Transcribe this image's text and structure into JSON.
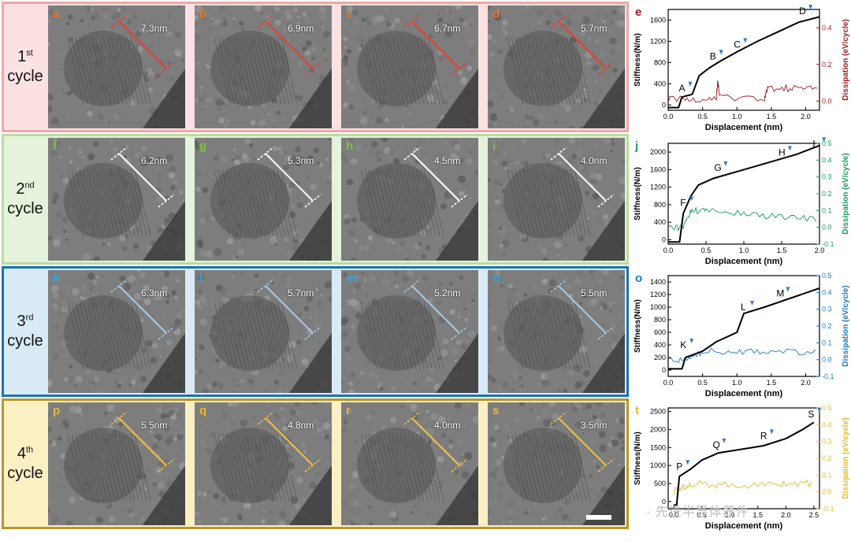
{
  "rows": [
    {
      "cycle_num": "1",
      "cycle_sup": "st",
      "cycle_word": "cycle",
      "border": "#f2a6a8",
      "bg": "#fbe1e2",
      "accent": "#e53e2e",
      "label_color": "#e0742c",
      "panels": [
        {
          "letter": "a",
          "value": "7.3nm"
        },
        {
          "letter": "b",
          "value": "6.9nm"
        },
        {
          "letter": "c",
          "value": "6.7nm"
        },
        {
          "letter": "d",
          "value": "5.7nm"
        }
      ]
    },
    {
      "cycle_num": "2",
      "cycle_sup": "nd",
      "cycle_word": "cycle",
      "border": "#b8dca0",
      "bg": "#e6f3dc",
      "accent": "#ffffff",
      "label_color": "#7dc23f",
      "panels": [
        {
          "letter": "f",
          "value": "6.2nm"
        },
        {
          "letter": "g",
          "value": "5.3nm"
        },
        {
          "letter": "h",
          "value": "4.5nm"
        },
        {
          "letter": "i",
          "value": "4.0nm"
        }
      ]
    },
    {
      "cycle_num": "3",
      "cycle_sup": "rd",
      "cycle_word": "cycle",
      "border": "#1a73b8",
      "bg": "#d9eaf7",
      "accent": "#a6c8e6",
      "label_color": "#29a7d9",
      "panels": [
        {
          "letter": "k",
          "value": "6.3nm"
        },
        {
          "letter": "l",
          "value": "5.7nm"
        },
        {
          "letter": "m",
          "value": "5.2nm"
        },
        {
          "letter": "n",
          "value": "5.5nm"
        }
      ]
    },
    {
      "cycle_num": "4",
      "cycle_sup": "th",
      "cycle_word": "cycle",
      "border": "#b8962a",
      "bg": "#fbefc4",
      "accent": "#f2c040",
      "label_color": "#e8b830",
      "panels": [
        {
          "letter": "p",
          "value": "5.5nm"
        },
        {
          "letter": "q",
          "value": "4.8nm"
        },
        {
          "letter": "r",
          "value": "4.0nm"
        },
        {
          "letter": "s",
          "value": "3.5nm"
        }
      ]
    }
  ],
  "watermark": "· 先进半导体器件",
  "chart_data": [
    {
      "panel_letter": "e",
      "type": "line",
      "xlabel": "Displacement (nm)",
      "ylabel": "Stiffness(N/m)",
      "y2label": "Dissipation (eV/cycle)",
      "xlim": [
        0,
        2.2
      ],
      "ylim": [
        -100,
        1800
      ],
      "y2lim": [
        -0.05,
        0.5
      ],
      "xticks": [
        0,
        0.5,
        1.0,
        1.5,
        2.0
      ],
      "yticks": [
        0,
        400,
        800,
        1200,
        1600
      ],
      "y2ticks": [
        0.0,
        0.2,
        0.4
      ],
      "color2": "#9a1c1c",
      "annotations": [
        {
          "label": "A",
          "x": 0.2,
          "y": 200
        },
        {
          "label": "B",
          "x": 0.65,
          "y": 800
        },
        {
          "label": "C",
          "x": 1.0,
          "y": 1020
        },
        {
          "label": "D",
          "x": 1.95,
          "y": 1650
        }
      ],
      "stiffness": [
        [
          0,
          -50
        ],
        [
          0.15,
          -50
        ],
        [
          0.2,
          150
        ],
        [
          0.35,
          200
        ],
        [
          0.45,
          550
        ],
        [
          0.6,
          700
        ],
        [
          0.75,
          820
        ],
        [
          1.0,
          1000
        ],
        [
          1.3,
          1200
        ],
        [
          1.6,
          1380
        ],
        [
          1.9,
          1560
        ],
        [
          2.2,
          1660
        ]
      ],
      "dissipation": [
        [
          0,
          0.01
        ],
        [
          0.3,
          0.01
        ],
        [
          0.7,
          0.02
        ],
        [
          0.72,
          0.11
        ],
        [
          0.75,
          0.02
        ],
        [
          1.4,
          0.02
        ],
        [
          1.45,
          0.07
        ],
        [
          1.8,
          0.07
        ],
        [
          2.2,
          0.07
        ]
      ]
    },
    {
      "panel_letter": "j",
      "type": "line",
      "xlabel": "Displacement (nm)",
      "ylabel": "Stiffness(N/m)",
      "y2label": "Dissipation (eV/cycle)",
      "xlim": [
        0,
        2.0
      ],
      "ylim": [
        -100,
        2200
      ],
      "y2lim": [
        -0.1,
        0.5
      ],
      "xticks": [
        0.0,
        0.5,
        1.0,
        1.5,
        2.0
      ],
      "yticks": [
        0,
        400,
        800,
        1200,
        1600,
        2000
      ],
      "y2ticks": [
        -0.1,
        0.0,
        0.1,
        0.2,
        0.3,
        0.4,
        0.5
      ],
      "color2": "#1a9a5a",
      "annotations": [
        {
          "label": "F",
          "x": 0.2,
          "y": 700
        },
        {
          "label": "G",
          "x": 0.65,
          "y": 1500
        },
        {
          "label": "H",
          "x": 1.5,
          "y": 1850
        },
        {
          "label": "I",
          "x": 1.95,
          "y": 2050
        }
      ],
      "stiffness": [
        [
          0,
          -50
        ],
        [
          0.15,
          -50
        ],
        [
          0.2,
          600
        ],
        [
          0.3,
          1000
        ],
        [
          0.4,
          1250
        ],
        [
          0.6,
          1400
        ],
        [
          1.0,
          1600
        ],
        [
          1.4,
          1800
        ],
        [
          1.7,
          1950
        ],
        [
          2.0,
          2150
        ]
      ],
      "dissipation": [
        [
          0,
          0.0
        ],
        [
          0.2,
          0.0
        ],
        [
          0.3,
          0.1
        ],
        [
          0.5,
          0.1
        ],
        [
          1.0,
          0.08
        ],
        [
          1.5,
          0.06
        ],
        [
          2.0,
          0.05
        ]
      ]
    },
    {
      "panel_letter": "o",
      "type": "line",
      "xlabel": "Displacement (nm)",
      "ylabel": "Stiffness(N/m)",
      "y2label": "Dissipation (eV/cycle)",
      "xlim": [
        0,
        2.2
      ],
      "ylim": [
        -100,
        1500
      ],
      "y2lim": [
        -0.1,
        0.5
      ],
      "xticks": [
        0.0,
        0.5,
        1.0,
        1.5,
        2.0
      ],
      "yticks": [
        0,
        200,
        400,
        600,
        800,
        1000,
        1200,
        1400
      ],
      "y2ticks": [
        -0.1,
        0.0,
        0.1,
        0.2,
        0.3,
        0.4,
        0.5
      ],
      "color2": "#1f78c0",
      "annotations": [
        {
          "label": "K",
          "x": 0.22,
          "y": 300
        },
        {
          "label": "L",
          "x": 1.1,
          "y": 900
        },
        {
          "label": "M",
          "x": 1.62,
          "y": 1120
        }
      ],
      "stiffness": [
        [
          0,
          20
        ],
        [
          0.2,
          20
        ],
        [
          0.25,
          200
        ],
        [
          0.5,
          300
        ],
        [
          0.7,
          450
        ],
        [
          1.0,
          600
        ],
        [
          1.1,
          900
        ],
        [
          1.4,
          1000
        ],
        [
          1.8,
          1150
        ],
        [
          2.2,
          1300
        ]
      ],
      "dissipation": [
        [
          0,
          0.0
        ],
        [
          0.3,
          0.0
        ],
        [
          0.5,
          0.05
        ],
        [
          1.0,
          0.05
        ],
        [
          1.5,
          0.05
        ],
        [
          2.2,
          0.04
        ]
      ]
    },
    {
      "panel_letter": "t",
      "type": "line",
      "xlabel": "Displacement (nm)",
      "ylabel": "Stiffness(N/m)",
      "y2label": "Dissipation (eV/cycle)",
      "xlim": [
        -0.1,
        2.6
      ],
      "ylim": [
        -200,
        2600
      ],
      "y2lim": [
        -0.1,
        0.5
      ],
      "xticks": [
        0.0,
        0.5,
        1.0,
        1.5,
        2.0,
        2.5
      ],
      "yticks": [
        0,
        500,
        1000,
        1500,
        2000,
        2500
      ],
      "y2ticks": [
        -0.1,
        0.0,
        0.1,
        0.2,
        0.3,
        0.4,
        0.5
      ],
      "color2": "#e8b830",
      "annotations": [
        {
          "label": "P",
          "x": 0.1,
          "y": 800
        },
        {
          "label": "Q",
          "x": 0.75,
          "y": 1400
        },
        {
          "label": "R",
          "x": 1.6,
          "y": 1650
        },
        {
          "label": "S",
          "x": 2.45,
          "y": 2250
        }
      ],
      "stiffness": [
        [
          0,
          -100
        ],
        [
          0.05,
          -100
        ],
        [
          0.1,
          700
        ],
        [
          0.3,
          900
        ],
        [
          0.5,
          1150
        ],
        [
          0.8,
          1350
        ],
        [
          1.2,
          1450
        ],
        [
          1.6,
          1550
        ],
        [
          2.0,
          1750
        ],
        [
          2.3,
          2000
        ],
        [
          2.5,
          2200
        ]
      ],
      "dissipation": [
        [
          0,
          0.0
        ],
        [
          0.1,
          0.02
        ],
        [
          0.3,
          0.05
        ],
        [
          0.8,
          0.04
        ],
        [
          1.5,
          0.04
        ],
        [
          2.0,
          0.05
        ],
        [
          2.5,
          0.05
        ]
      ]
    }
  ]
}
